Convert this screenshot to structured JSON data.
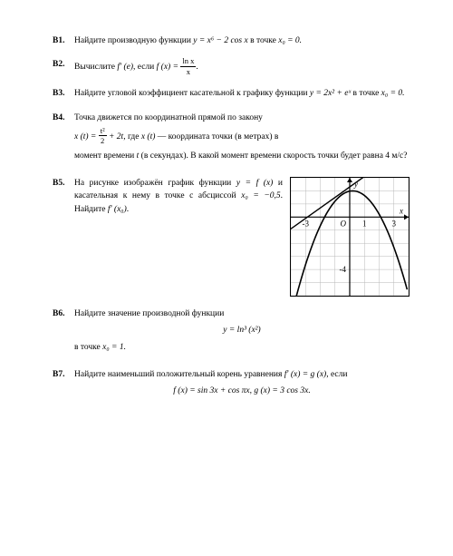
{
  "problems": {
    "b1": {
      "label": "В1.",
      "text_pre": "Найдите производную функции ",
      "eq": "y = x⁶ − 2 cos x",
      "text_post": " в точке ",
      "xpoint": "x₀ = 0."
    },
    "b2": {
      "label": "В2.",
      "text_pre": "Вычислите ",
      "fprime": "f′ (e)",
      "text_mid": ", если ",
      "feq_lhs": "f (x) = ",
      "frac_num": "ln x",
      "frac_den": "x",
      "period": "."
    },
    "b3": {
      "label": "В3.",
      "text": "Найдите угловой коэффициент касательной к графику функции ",
      "eq": "y = 2x² + eˣ",
      "text_post": " в точке ",
      "xpoint": "x₀ = 0."
    },
    "b4": {
      "label": "В4.",
      "line1": "Точка движется по координатной прямой по закону",
      "eq_lhs": "x (t) = ",
      "frac_num": "t²",
      "frac_den": "2",
      "eq_rhs": " + 2t",
      "text_mid": ", где ",
      "xt": "x (t)",
      "text_mid2": " — координата точки (в метрах) в",
      "line3_pre": "момент времени ",
      "t_var": "t",
      "line3_post": " (в секундах). В какой момент времени скорость точки будет равна 4 м/с?"
    },
    "b5": {
      "label": "В5.",
      "l1": "На рисунке изображён график функции ",
      "yfx": "y = f (x)",
      "l1b": " и касательная к нему в точке с абсциссой ",
      "xpt": "x₀ = −0,5",
      "l1c": ". Найдите ",
      "fpx": "f′ (x₀)",
      "l1d": ".",
      "chart": {
        "width": 130,
        "height": 130,
        "xmin": -4,
        "xmax": 4,
        "ymin": -6,
        "ymax": 3,
        "xticks": [
          -3,
          0,
          1,
          3
        ],
        "ytick_neg": -4,
        "xlabel": "x",
        "ylabel": "y",
        "origin_label": "O",
        "grid_color": "#b8b8b8",
        "axis_color": "#000000",
        "curve_color": "#000000",
        "parabola": {
          "vertex_x": 0.2,
          "vertex_y": 2,
          "a": -0.55
        },
        "tangent": {
          "m": 0.8,
          "b": 2.3
        }
      }
    },
    "b6": {
      "label": "В6.",
      "text": "Найдите значение производной функции",
      "eq": "y = ln³ (x²)",
      "text2_pre": "в точке ",
      "xpt": "x₀ = 1."
    },
    "b7": {
      "label": "В7.",
      "text": "Найдите наименьший положительный корень уравнения ",
      "eq_lhs": "f′ (x) = g (x)",
      "text2": ", если",
      "eq2": "f (x) = sin 3x + cos πx,  g (x) = 3 cos 3x."
    }
  }
}
